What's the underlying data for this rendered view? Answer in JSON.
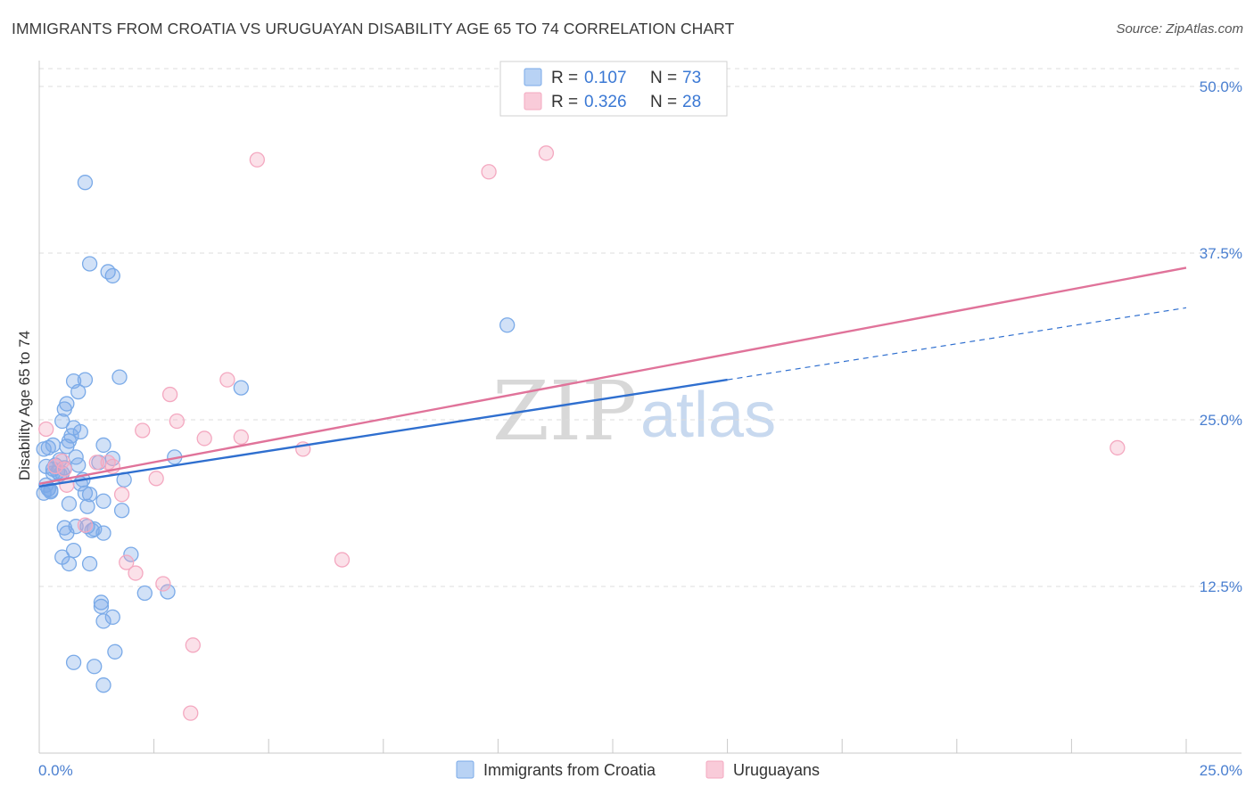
{
  "title": "IMMIGRANTS FROM CROATIA VS URUGUAYAN DISABILITY AGE 65 TO 74 CORRELATION CHART",
  "source": "Source: ZipAtlas.com",
  "watermark": {
    "zip": "ZIP",
    "atlas": "atlas"
  },
  "chart_data": {
    "type": "scatter",
    "ylabel": "Disability Age 65 to 74",
    "xlim": [
      0,
      25
    ],
    "ylim": [
      0,
      50
    ],
    "x_tick_labels": [
      {
        "value": 0,
        "label": "0.0%"
      },
      {
        "value": 25,
        "label": "25.0%"
      }
    ],
    "y_tick_labels": [
      {
        "value": 12.5,
        "label": "12.5%"
      },
      {
        "value": 25,
        "label": "25.0%"
      },
      {
        "value": 37.5,
        "label": "37.5%"
      },
      {
        "value": 50,
        "label": "50.0%"
      }
    ],
    "legend": [
      {
        "r_label": "R =",
        "r_value": "0.107",
        "n_label": "N =",
        "n_value": "73"
      },
      {
        "r_label": "R =",
        "r_value": "0.326",
        "n_label": "N =",
        "n_value": "28"
      }
    ],
    "series": [
      {
        "name": "Immigrants from Croatia",
        "color": "#7aaae8",
        "line_color": "#2f6fcf",
        "trend": {
          "x0": 0,
          "y0": 20.0,
          "x1": 15,
          "y1": 28.0,
          "dash_to_x": 25,
          "dash_to_y": 33.4
        },
        "points": [
          [
            0.1,
            19.5
          ],
          [
            0.15,
            20.1
          ],
          [
            0.2,
            19.8
          ],
          [
            0.25,
            19.6
          ],
          [
            0.3,
            21.3
          ],
          [
            0.35,
            21.6
          ],
          [
            0.4,
            21.1
          ],
          [
            0.45,
            20.9
          ],
          [
            0.5,
            21.0
          ],
          [
            0.55,
            21.4
          ],
          [
            0.1,
            22.8
          ],
          [
            0.3,
            23.1
          ],
          [
            0.5,
            24.9
          ],
          [
            0.6,
            23.0
          ],
          [
            0.65,
            23.4
          ],
          [
            0.7,
            23.8
          ],
          [
            0.75,
            24.4
          ],
          [
            0.8,
            22.2
          ],
          [
            0.85,
            21.6
          ],
          [
            0.9,
            20.2
          ],
          [
            0.95,
            20.5
          ],
          [
            1.0,
            19.5
          ],
          [
            1.05,
            18.5
          ],
          [
            1.1,
            19.4
          ],
          [
            0.55,
            25.8
          ],
          [
            0.6,
            26.2
          ],
          [
            0.75,
            27.9
          ],
          [
            0.85,
            27.1
          ],
          [
            1.0,
            28.0
          ],
          [
            0.9,
            24.1
          ],
          [
            0.65,
            18.7
          ],
          [
            0.55,
            16.9
          ],
          [
            0.6,
            16.5
          ],
          [
            0.8,
            17.0
          ],
          [
            1.05,
            17.0
          ],
          [
            1.15,
            16.7
          ],
          [
            1.2,
            16.8
          ],
          [
            1.4,
            16.5
          ],
          [
            0.5,
            14.7
          ],
          [
            0.65,
            14.2
          ],
          [
            0.75,
            15.2
          ],
          [
            1.1,
            14.2
          ],
          [
            1.4,
            18.9
          ],
          [
            1.8,
            18.2
          ],
          [
            1.85,
            20.5
          ],
          [
            1.6,
            22.1
          ],
          [
            1.4,
            23.1
          ],
          [
            1.3,
            21.8
          ],
          [
            1.75,
            28.2
          ],
          [
            2.95,
            22.2
          ],
          [
            4.4,
            27.4
          ],
          [
            1.5,
            36.1
          ],
          [
            1.6,
            35.8
          ],
          [
            1.1,
            36.7
          ],
          [
            1.0,
            42.8
          ],
          [
            10.2,
            32.1
          ],
          [
            2.0,
            14.9
          ],
          [
            2.3,
            12.0
          ],
          [
            2.8,
            12.1
          ],
          [
            1.35,
            11.3
          ],
          [
            1.35,
            11.0
          ],
          [
            1.4,
            9.9
          ],
          [
            1.6,
            10.2
          ],
          [
            1.65,
            7.6
          ],
          [
            0.75,
            6.8
          ],
          [
            1.2,
            6.5
          ],
          [
            1.4,
            5.1
          ],
          [
            0.2,
            19.8
          ],
          [
            0.3,
            21.0
          ],
          [
            0.45,
            22.0
          ],
          [
            0.2,
            22.9
          ],
          [
            0.15,
            21.5
          ],
          [
            0.25,
            19.7
          ]
        ]
      },
      {
        "name": "Uruguayans",
        "color": "#f4a8c0",
        "line_color": "#e0739a",
        "trend": {
          "x0": 0,
          "y0": 20.2,
          "x1": 25,
          "y1": 36.4
        },
        "points": [
          [
            0.15,
            24.3
          ],
          [
            0.5,
            21.9
          ],
          [
            0.55,
            21.3
          ],
          [
            0.6,
            20.1
          ],
          [
            1.0,
            17.1
          ],
          [
            1.25,
            21.8
          ],
          [
            1.5,
            21.8
          ],
          [
            1.6,
            21.5
          ],
          [
            1.8,
            19.4
          ],
          [
            1.9,
            14.3
          ],
          [
            2.1,
            13.5
          ],
          [
            2.25,
            24.2
          ],
          [
            2.55,
            20.6
          ],
          [
            2.7,
            12.7
          ],
          [
            2.85,
            26.9
          ],
          [
            3.0,
            24.9
          ],
          [
            3.6,
            23.6
          ],
          [
            3.35,
            8.1
          ],
          [
            3.3,
            3.0
          ],
          [
            4.1,
            28.0
          ],
          [
            4.4,
            23.7
          ],
          [
            4.75,
            44.5
          ],
          [
            5.75,
            22.8
          ],
          [
            6.6,
            14.5
          ],
          [
            9.8,
            43.6
          ],
          [
            11.05,
            45.0
          ],
          [
            23.5,
            22.9
          ],
          [
            0.35,
            21.5
          ]
        ]
      }
    ]
  }
}
